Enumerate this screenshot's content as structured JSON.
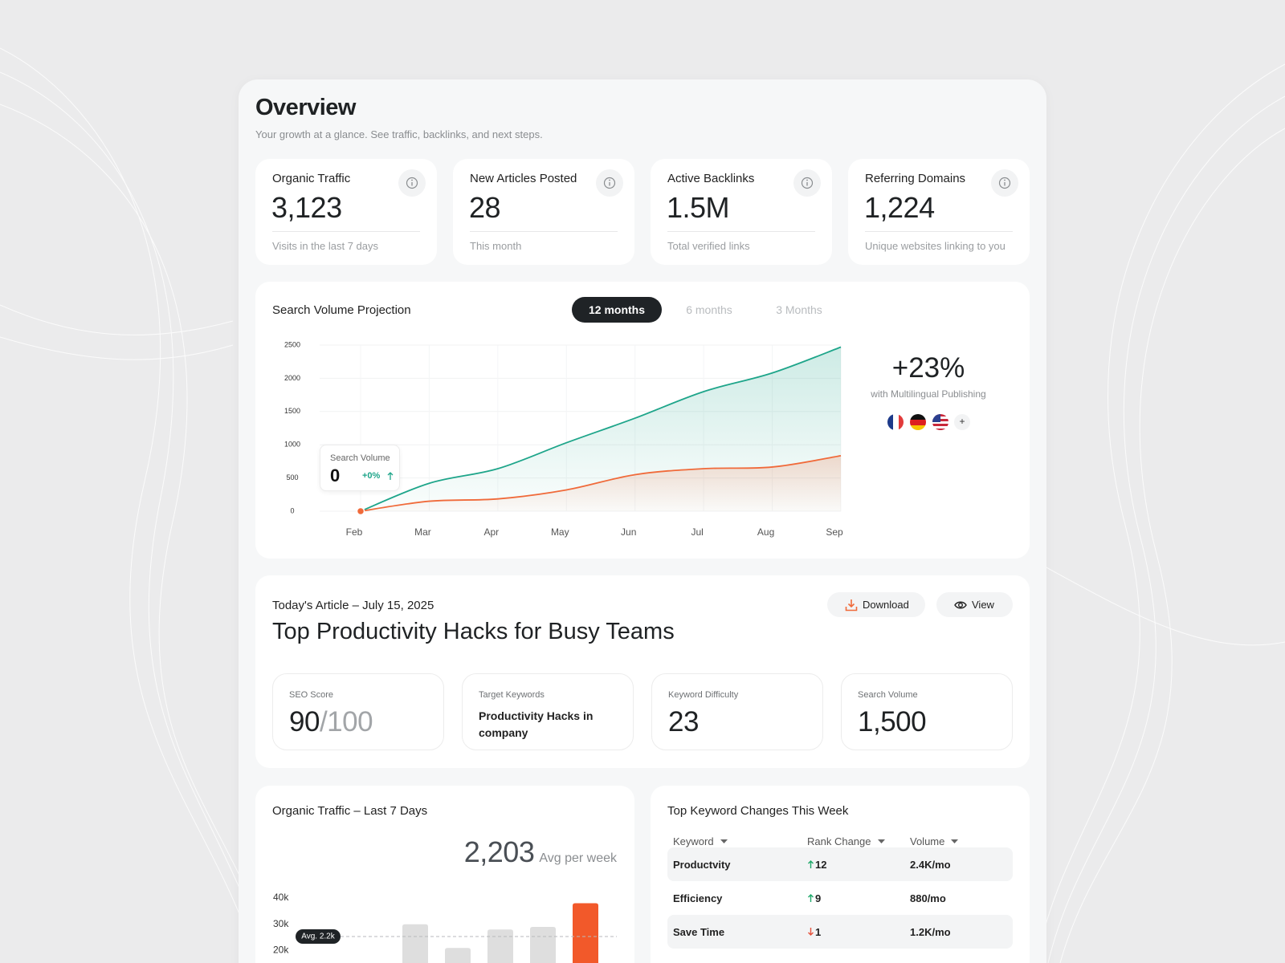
{
  "header": {
    "title": "Overview",
    "subtitle": "Your growth at a glance. See traffic, backlinks, and next steps."
  },
  "stats": [
    {
      "label": "Organic Traffic",
      "value": "3,123",
      "note": "Visits in the last 7 days"
    },
    {
      "label": "New Articles Posted",
      "value": "28",
      "note": "This month"
    },
    {
      "label": "Active Backlinks",
      "value": "1.5M",
      "note": "Total verified links"
    },
    {
      "label": "Referring Domains",
      "value": "1,224",
      "note": "Unique websites linking to you"
    }
  ],
  "projection": {
    "title": "Search Volume Projection",
    "tabs": [
      "12 months",
      "6 months",
      "3 Months"
    ],
    "active_tab": 0,
    "chart_data": {
      "type": "line",
      "categories": [
        "Feb",
        "Mar",
        "Apr",
        "May",
        "Jun",
        "Jul",
        "Aug",
        "Sep"
      ],
      "series": [
        {
          "color": "#1ea58a",
          "values": [
            0,
            420,
            640,
            1030,
            1400,
            1800,
            2080,
            2470
          ]
        },
        {
          "color": "#f06a3a",
          "values": [
            0,
            150,
            185,
            320,
            550,
            640,
            665,
            835
          ]
        }
      ],
      "ylim": [
        0,
        2500
      ],
      "yticks": [
        0,
        500,
        1000,
        1500,
        2000,
        2500
      ],
      "grid": true,
      "area": true
    },
    "tooltip": {
      "label": "Search Volume",
      "value": "0",
      "change": "+0%"
    },
    "growth": {
      "value": "+23%",
      "label": "with Multilingual Publishing",
      "more": "+"
    }
  },
  "article": {
    "date_label": "Today's Article – July 15, 2025",
    "actions": [
      "Download",
      "View"
    ],
    "title": "Top Productivity Hacks for Busy Teams",
    "metrics": [
      {
        "label": "SEO Score",
        "value": "90",
        "suffix": "/100"
      },
      {
        "label": "Target Keywords",
        "value": "Productivity Hacks in company"
      },
      {
        "label": "Keyword Difficulty",
        "value": "23"
      },
      {
        "label": "Search Volume",
        "value": "1,500"
      }
    ]
  },
  "traffic": {
    "title": "Organic Traffic – Last 7 Days",
    "total": "2,203",
    "total_label": "Avg per week",
    "avg_label": "Avg. 2.2k",
    "chart_data": {
      "type": "bar",
      "values": [
        30000,
        21000,
        28000,
        29000,
        38000
      ],
      "color": "#dedede",
      "highlight_color": "#f2592a",
      "highlight_index": 4,
      "ylim": [
        0,
        40000
      ],
      "yticks": [
        {
          "value": 40000,
          "label": "40k"
        },
        {
          "value": 30000,
          "label": "30k"
        },
        {
          "value": 20000,
          "label": "20k"
        }
      ]
    }
  },
  "keywords": {
    "title": "Top Keyword Changes This Week",
    "columns": [
      "Keyword",
      "Rank Change",
      "Volume"
    ],
    "rows": [
      {
        "keyword": "Productvity",
        "change": "12",
        "direction": "up",
        "volume": "2.4K/mo"
      },
      {
        "keyword": "Efficiency",
        "change": "9",
        "direction": "up",
        "volume": "880/mo"
      },
      {
        "keyword": "Save Time",
        "change": "1",
        "direction": "down",
        "volume": "1.2K/mo"
      }
    ]
  }
}
